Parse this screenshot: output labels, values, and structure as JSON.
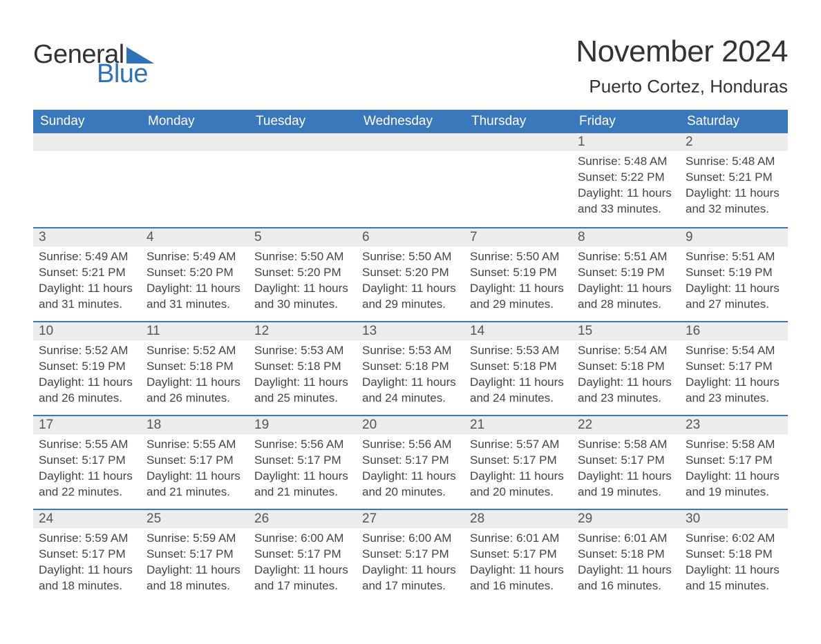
{
  "logo": {
    "word1": "General",
    "word2": "Blue",
    "triangle_color": "#2f72b8",
    "word1_color": "#333333",
    "word2_color": "#2f72b8"
  },
  "title": "November 2024",
  "location": "Puerto Cortez, Honduras",
  "colors": {
    "header_bg": "#3a78bc",
    "header_text": "#ffffff",
    "daynum_bg": "#ececec",
    "row_border": "#3a78bc",
    "body_text": "#444444",
    "page_bg": "#ffffff"
  },
  "weekdays": [
    "Sunday",
    "Monday",
    "Tuesday",
    "Wednesday",
    "Thursday",
    "Friday",
    "Saturday"
  ],
  "weeks": [
    [
      {
        "blank": true
      },
      {
        "blank": true
      },
      {
        "blank": true
      },
      {
        "blank": true
      },
      {
        "blank": true
      },
      {
        "day": "1",
        "sunrise": "Sunrise: 5:48 AM",
        "sunset": "Sunset: 5:22 PM",
        "daylight": "Daylight: 11 hours and 33 minutes."
      },
      {
        "day": "2",
        "sunrise": "Sunrise: 5:48 AM",
        "sunset": "Sunset: 5:21 PM",
        "daylight": "Daylight: 11 hours and 32 minutes."
      }
    ],
    [
      {
        "day": "3",
        "sunrise": "Sunrise: 5:49 AM",
        "sunset": "Sunset: 5:21 PM",
        "daylight": "Daylight: 11 hours and 31 minutes."
      },
      {
        "day": "4",
        "sunrise": "Sunrise: 5:49 AM",
        "sunset": "Sunset: 5:20 PM",
        "daylight": "Daylight: 11 hours and 31 minutes."
      },
      {
        "day": "5",
        "sunrise": "Sunrise: 5:50 AM",
        "sunset": "Sunset: 5:20 PM",
        "daylight": "Daylight: 11 hours and 30 minutes."
      },
      {
        "day": "6",
        "sunrise": "Sunrise: 5:50 AM",
        "sunset": "Sunset: 5:20 PM",
        "daylight": "Daylight: 11 hours and 29 minutes."
      },
      {
        "day": "7",
        "sunrise": "Sunrise: 5:50 AM",
        "sunset": "Sunset: 5:19 PM",
        "daylight": "Daylight: 11 hours and 29 minutes."
      },
      {
        "day": "8",
        "sunrise": "Sunrise: 5:51 AM",
        "sunset": "Sunset: 5:19 PM",
        "daylight": "Daylight: 11 hours and 28 minutes."
      },
      {
        "day": "9",
        "sunrise": "Sunrise: 5:51 AM",
        "sunset": "Sunset: 5:19 PM",
        "daylight": "Daylight: 11 hours and 27 minutes."
      }
    ],
    [
      {
        "day": "10",
        "sunrise": "Sunrise: 5:52 AM",
        "sunset": "Sunset: 5:19 PM",
        "daylight": "Daylight: 11 hours and 26 minutes."
      },
      {
        "day": "11",
        "sunrise": "Sunrise: 5:52 AM",
        "sunset": "Sunset: 5:18 PM",
        "daylight": "Daylight: 11 hours and 26 minutes."
      },
      {
        "day": "12",
        "sunrise": "Sunrise: 5:53 AM",
        "sunset": "Sunset: 5:18 PM",
        "daylight": "Daylight: 11 hours and 25 minutes."
      },
      {
        "day": "13",
        "sunrise": "Sunrise: 5:53 AM",
        "sunset": "Sunset: 5:18 PM",
        "daylight": "Daylight: 11 hours and 24 minutes."
      },
      {
        "day": "14",
        "sunrise": "Sunrise: 5:53 AM",
        "sunset": "Sunset: 5:18 PM",
        "daylight": "Daylight: 11 hours and 24 minutes."
      },
      {
        "day": "15",
        "sunrise": "Sunrise: 5:54 AM",
        "sunset": "Sunset: 5:18 PM",
        "daylight": "Daylight: 11 hours and 23 minutes."
      },
      {
        "day": "16",
        "sunrise": "Sunrise: 5:54 AM",
        "sunset": "Sunset: 5:17 PM",
        "daylight": "Daylight: 11 hours and 23 minutes."
      }
    ],
    [
      {
        "day": "17",
        "sunrise": "Sunrise: 5:55 AM",
        "sunset": "Sunset: 5:17 PM",
        "daylight": "Daylight: 11 hours and 22 minutes."
      },
      {
        "day": "18",
        "sunrise": "Sunrise: 5:55 AM",
        "sunset": "Sunset: 5:17 PM",
        "daylight": "Daylight: 11 hours and 21 minutes."
      },
      {
        "day": "19",
        "sunrise": "Sunrise: 5:56 AM",
        "sunset": "Sunset: 5:17 PM",
        "daylight": "Daylight: 11 hours and 21 minutes."
      },
      {
        "day": "20",
        "sunrise": "Sunrise: 5:56 AM",
        "sunset": "Sunset: 5:17 PM",
        "daylight": "Daylight: 11 hours and 20 minutes."
      },
      {
        "day": "21",
        "sunrise": "Sunrise: 5:57 AM",
        "sunset": "Sunset: 5:17 PM",
        "daylight": "Daylight: 11 hours and 20 minutes."
      },
      {
        "day": "22",
        "sunrise": "Sunrise: 5:58 AM",
        "sunset": "Sunset: 5:17 PM",
        "daylight": "Daylight: 11 hours and 19 minutes."
      },
      {
        "day": "23",
        "sunrise": "Sunrise: 5:58 AM",
        "sunset": "Sunset: 5:17 PM",
        "daylight": "Daylight: 11 hours and 19 minutes."
      }
    ],
    [
      {
        "day": "24",
        "sunrise": "Sunrise: 5:59 AM",
        "sunset": "Sunset: 5:17 PM",
        "daylight": "Daylight: 11 hours and 18 minutes."
      },
      {
        "day": "25",
        "sunrise": "Sunrise: 5:59 AM",
        "sunset": "Sunset: 5:17 PM",
        "daylight": "Daylight: 11 hours and 18 minutes."
      },
      {
        "day": "26",
        "sunrise": "Sunrise: 6:00 AM",
        "sunset": "Sunset: 5:17 PM",
        "daylight": "Daylight: 11 hours and 17 minutes."
      },
      {
        "day": "27",
        "sunrise": "Sunrise: 6:00 AM",
        "sunset": "Sunset: 5:17 PM",
        "daylight": "Daylight: 11 hours and 17 minutes."
      },
      {
        "day": "28",
        "sunrise": "Sunrise: 6:01 AM",
        "sunset": "Sunset: 5:17 PM",
        "daylight": "Daylight: 11 hours and 16 minutes."
      },
      {
        "day": "29",
        "sunrise": "Sunrise: 6:01 AM",
        "sunset": "Sunset: 5:18 PM",
        "daylight": "Daylight: 11 hours and 16 minutes."
      },
      {
        "day": "30",
        "sunrise": "Sunrise: 6:02 AM",
        "sunset": "Sunset: 5:18 PM",
        "daylight": "Daylight: 11 hours and 15 minutes."
      }
    ]
  ]
}
